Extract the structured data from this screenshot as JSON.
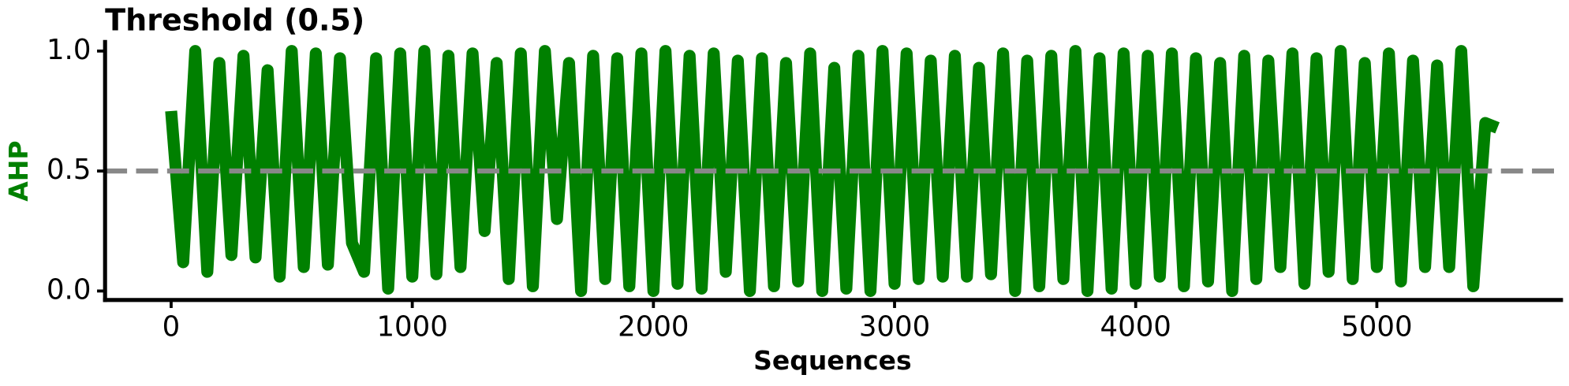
{
  "chart_data": {
    "type": "line",
    "title": "Threshold (0.5)",
    "xlabel": "Sequences",
    "ylabel": "AHP",
    "x": [
      0,
      50,
      100,
      150,
      200,
      250,
      300,
      350,
      400,
      450,
      500,
      550,
      600,
      650,
      700,
      750,
      800,
      850,
      900,
      950,
      1000,
      1050,
      1100,
      1150,
      1200,
      1250,
      1300,
      1350,
      1400,
      1450,
      1500,
      1550,
      1600,
      1650,
      1700,
      1750,
      1800,
      1850,
      1900,
      1950,
      2000,
      2050,
      2100,
      2150,
      2200,
      2250,
      2300,
      2350,
      2400,
      2450,
      2500,
      2550,
      2600,
      2650,
      2700,
      2750,
      2800,
      2850,
      2900,
      2950,
      3000,
      3050,
      3100,
      3150,
      3200,
      3250,
      3300,
      3350,
      3400,
      3450,
      3500,
      3550,
      3600,
      3650,
      3700,
      3750,
      3800,
      3850,
      3900,
      3950,
      4000,
      4050,
      4100,
      4150,
      4200,
      4250,
      4300,
      4350,
      4400,
      4450,
      4500,
      4550,
      4600,
      4650,
      4700,
      4750,
      4800,
      4850,
      4900,
      4950,
      5000,
      5050,
      5100,
      5150,
      5200,
      5250,
      5300,
      5350,
      5400,
      5450,
      5500
    ],
    "series": [
      {
        "name": "AHP",
        "color": "#008000",
        "values": [
          0.75,
          0.12,
          1.0,
          0.08,
          0.95,
          0.15,
          0.98,
          0.14,
          0.92,
          0.06,
          1.0,
          0.1,
          0.99,
          0.11,
          0.97,
          0.2,
          0.08,
          0.97,
          0.01,
          0.99,
          0.06,
          1.0,
          0.07,
          0.98,
          0.1,
          0.99,
          0.25,
          0.95,
          0.05,
          0.99,
          0.02,
          1.0,
          0.3,
          0.95,
          0.0,
          0.98,
          0.05,
          0.97,
          0.02,
          0.99,
          0.0,
          1.0,
          0.03,
          0.98,
          0.01,
          0.99,
          0.08,
          0.96,
          0.0,
          0.97,
          0.02,
          0.95,
          0.04,
          0.99,
          0.0,
          0.93,
          0.01,
          0.98,
          0.0,
          1.0,
          0.03,
          0.99,
          0.05,
          0.96,
          0.06,
          0.98,
          0.06,
          0.93,
          0.07,
          0.99,
          0.0,
          0.96,
          0.02,
          0.98,
          0.05,
          1.0,
          0.0,
          0.97,
          0.01,
          0.99,
          0.03,
          0.98,
          0.06,
          0.99,
          0.02,
          0.97,
          0.04,
          0.95,
          0.0,
          0.98,
          0.05,
          0.96,
          0.1,
          0.99,
          0.03,
          0.97,
          0.08,
          1.0,
          0.05,
          0.95,
          0.1,
          0.99,
          0.04,
          0.96,
          0.1,
          0.94,
          0.1,
          1.0,
          0.02,
          0.7,
          0.68
        ]
      }
    ],
    "threshold": 0.5,
    "threshold_color": "#888888",
    "xlim": [
      -274,
      5772
    ],
    "ylim": [
      -0.0375,
      1.046
    ],
    "xticks": [
      0,
      1000,
      2000,
      3000,
      4000,
      5000
    ],
    "yticks": [
      {
        "value": 0,
        "label": "0.0"
      },
      0.5,
      {
        "value": 1,
        "label": "1.0"
      }
    ]
  }
}
